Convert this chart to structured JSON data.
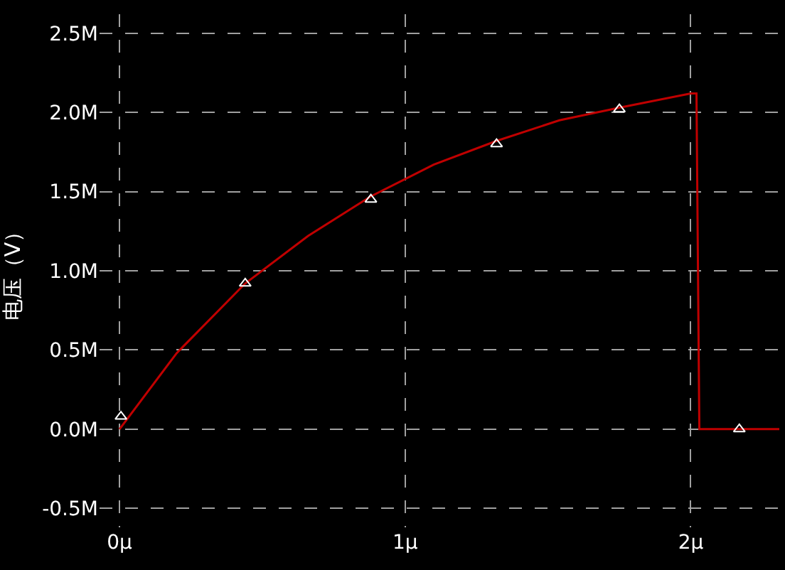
{
  "chart_data": {
    "type": "line",
    "ylabel": "电压（V）",
    "series": [
      {
        "color": "#c00000",
        "marker": "none",
        "x": [
          0,
          0.2,
          0.44,
          0.66,
          0.88,
          1.1,
          1.32,
          1.54,
          1.75,
          2.0,
          2.02,
          2.03,
          2.31
        ],
        "values": [
          0,
          0.48,
          0.92,
          1.22,
          1.47,
          1.67,
          1.82,
          1.95,
          2.03,
          2.12,
          2.12,
          0,
          0
        ]
      },
      {
        "type": "scatter",
        "color": "#ffffff",
        "marker": "triangle",
        "x": [
          0.005,
          0.44,
          0.88,
          1.32,
          1.75,
          2.17
        ],
        "values": [
          0.08,
          0.92,
          1.45,
          1.8,
          2.02,
          0
        ]
      }
    ],
    "xlim": [
      -0.07,
      2.31
    ],
    "ylim": [
      -0.62,
      2.62
    ],
    "xticks": [
      {
        "value": 0,
        "label": "0μ"
      },
      {
        "value": 1,
        "label": "1μ"
      },
      {
        "value": 2,
        "label": "2μ"
      }
    ],
    "yticks": [
      {
        "value": -0.5,
        "label": "-0.5M"
      },
      {
        "value": 0,
        "label": "0.0M"
      },
      {
        "value": 0.5,
        "label": "0.5M"
      },
      {
        "value": 1,
        "label": "1.0M"
      },
      {
        "value": 1.5,
        "label": "1.5M"
      },
      {
        "value": 2,
        "label": "2.0M"
      },
      {
        "value": 2.5,
        "label": "2.5M"
      }
    ],
    "grid": true
  }
}
